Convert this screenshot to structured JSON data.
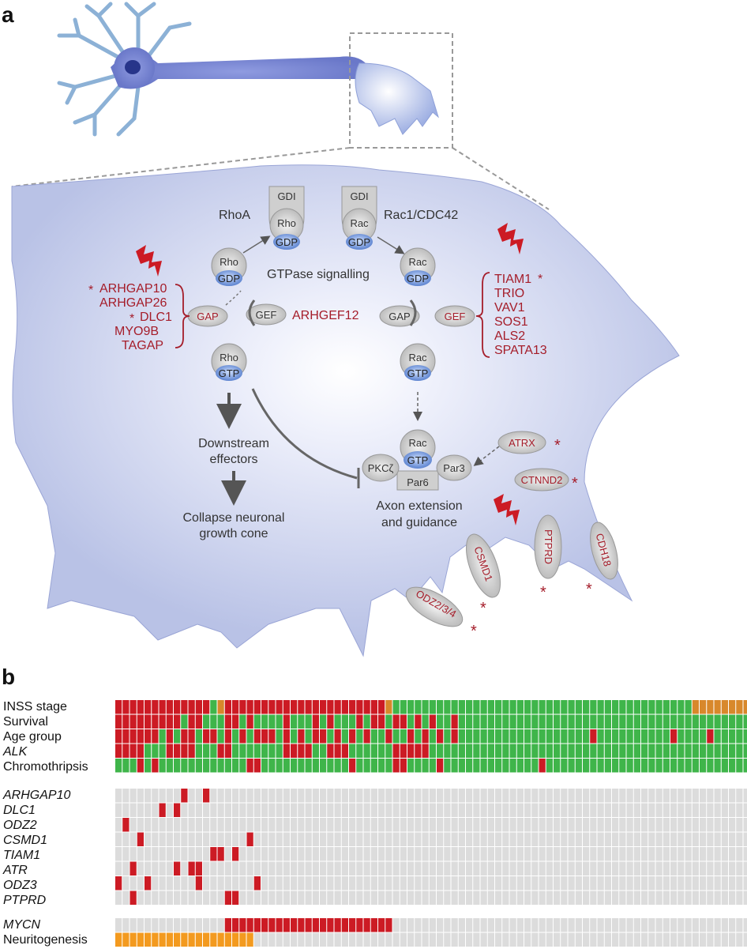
{
  "panels": {
    "a": "a",
    "b": "b"
  },
  "panel_a": {
    "rhoa": "RhoA",
    "rac1_cdc42": "Rac1/CDC42",
    "gdi": "GDI",
    "rho": "Rho",
    "rac": "Rac",
    "gdp": "GDP",
    "gtp": "GTP",
    "gtpase_signalling": "GTPase signalling",
    "gap": "GAP",
    "gef": "GEF",
    "arhgef12": "ARHGEF12",
    "left_genes": [
      "ARHGAP10",
      "ARHGAP26",
      "DLC1",
      "MYO9B",
      "TAGAP"
    ],
    "right_genes": [
      "TIAM1",
      "TRIO",
      "VAV1",
      "SOS1",
      "ALS2",
      "SPATA13"
    ],
    "asterisk": "*",
    "downstream_line1": "Downstream",
    "downstream_line2": "effectors",
    "collapse_line1": "Collapse neuronal",
    "collapse_line2": "growth cone",
    "pkc": "PKCζ",
    "par3": "Par3",
    "par6": "Par6",
    "atrx": "ATRX",
    "ctnnd2": "CTNND2",
    "axon_line1": "Axon extension",
    "axon_line2": "and guidance",
    "membrane_proteins": [
      "CSMD1",
      "PTPRD",
      "CDH18",
      "ODZ2/3/4"
    ]
  },
  "colors": {
    "red": "#cc1b24",
    "green": "#3fb54a",
    "orange": "#f39a1f",
    "brown_orange": "#d8882b",
    "grey": "#dcdcdc",
    "gene_text": "#a51d2a",
    "cell_fill": "#bcc4e8"
  },
  "panel_b": {
    "clinical_labels": [
      "INSS stage",
      "Survival",
      "Age group",
      "ALK",
      "Chromothripsis"
    ],
    "gene_labels": [
      "ARHGAP10",
      "DLC1",
      "ODZ2",
      "CSMD1",
      "TIAM1",
      "ATR",
      "ODZ3",
      "PTPRD"
    ],
    "bottom_labels": [
      "MYCN",
      "Neuritogenesis"
    ],
    "columns": 87
  }
}
